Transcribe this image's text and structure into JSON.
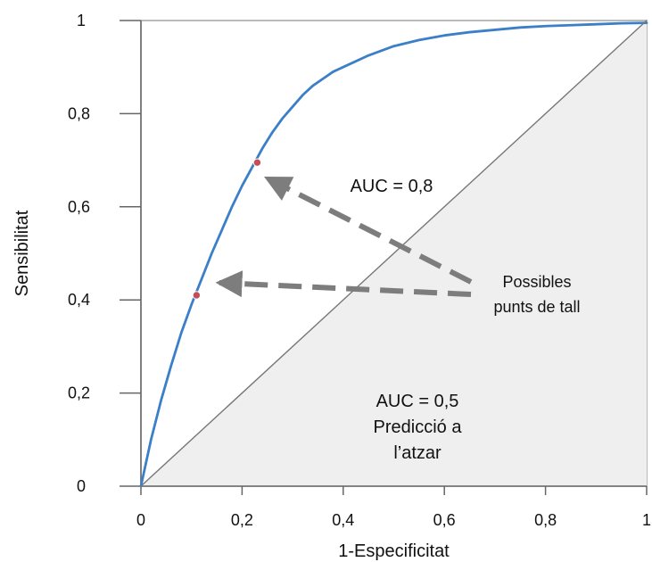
{
  "chart_data": {
    "type": "line",
    "xlabel": "1-Especificitat",
    "ylabel": "Sensibilitat",
    "xlim": [
      0,
      1
    ],
    "ylim": [
      0,
      1
    ],
    "x_ticks": [
      {
        "value": 0,
        "label": "0"
      },
      {
        "value": 0.2,
        "label": "0,2"
      },
      {
        "value": 0.4,
        "label": "0,4"
      },
      {
        "value": 0.6,
        "label": "0,6"
      },
      {
        "value": 0.8,
        "label": "0,8"
      },
      {
        "value": 1,
        "label": "1"
      }
    ],
    "y_ticks": [
      {
        "value": 0,
        "label": "0"
      },
      {
        "value": 0.2,
        "label": "0,2"
      },
      {
        "value": 0.4,
        "label": "0,4"
      },
      {
        "value": 0.6,
        "label": "0,6"
      },
      {
        "value": 0.8,
        "label": "0,8"
      },
      {
        "value": 1,
        "label": "1"
      }
    ],
    "grid": false,
    "series": [
      {
        "x": [
          0,
          0.02,
          0.04,
          0.06,
          0.08,
          0.1,
          0.12,
          0.14,
          0.16,
          0.18,
          0.2,
          0.22,
          0.24,
          0.26,
          0.28,
          0.3,
          0.32,
          0.34,
          0.36,
          0.38,
          0.4,
          0.45,
          0.5,
          0.55,
          0.6,
          0.65,
          0.7,
          0.75,
          0.8,
          0.85,
          0.9,
          0.95,
          1
        ],
        "y": [
          0,
          0.1,
          0.185,
          0.26,
          0.33,
          0.39,
          0.445,
          0.5,
          0.55,
          0.6,
          0.645,
          0.685,
          0.725,
          0.76,
          0.79,
          0.815,
          0.84,
          0.86,
          0.875,
          0.89,
          0.9,
          0.925,
          0.945,
          0.958,
          0.968,
          0.975,
          0.98,
          0.985,
          0.988,
          0.99,
          0.992,
          0.994,
          0.995
        ],
        "color": "#3a7fc8"
      },
      {
        "x": [
          0,
          1
        ],
        "y": [
          0,
          1
        ],
        "color": "#777777"
      }
    ],
    "points": [
      {
        "x": 0.11,
        "y": 0.41,
        "color": "#c44d56"
      },
      {
        "x": 0.23,
        "y": 0.695,
        "color": "#c44d56"
      }
    ],
    "shaded_region": {
      "label": "area under diagonal",
      "color": "#efefef"
    },
    "annotations": {
      "auc_main": "AUC = 0,8",
      "auc_random_line1": "AUC = 0,5",
      "auc_random_line2": "Predicció a",
      "auc_random_line3": "l’atzar",
      "cut_points_line1": "Possibles",
      "cut_points_line2": "punts de tall"
    },
    "arrow_color": "#7d7d7d"
  }
}
